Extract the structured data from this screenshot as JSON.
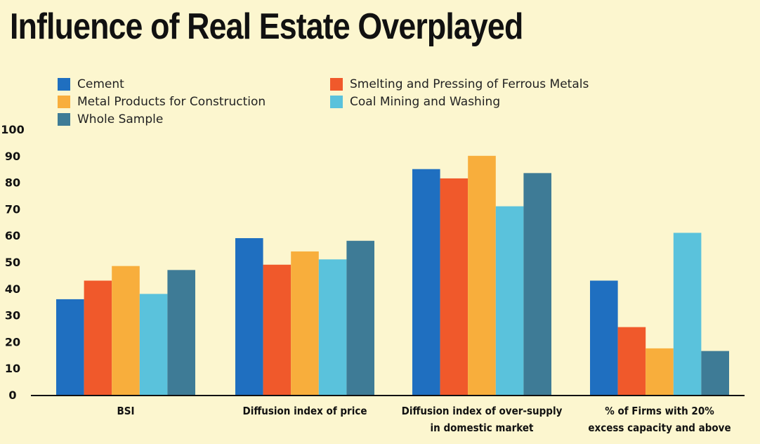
{
  "chart_data": {
    "type": "bar",
    "title": "Influence of Real Estate Overplayed",
    "categories": [
      [
        "BSI"
      ],
      [
        "Diffusion index of price"
      ],
      [
        "Diffusion index of over-supply",
        "in domestic market"
      ],
      [
        "% of Firms with 20%",
        "excess capacity and above"
      ]
    ],
    "series": [
      {
        "name": "Cement",
        "color": "#1f6fc0",
        "values": [
          36,
          59,
          85,
          43
        ]
      },
      {
        "name": "Smelting and Pressing of Ferrous Metals",
        "color": "#f0592b",
        "values": [
          43,
          49,
          81.5,
          25.5
        ]
      },
      {
        "name": "Metal Products for Construction",
        "color": "#f8ae3c",
        "values": [
          48.5,
          54,
          90,
          17.5
        ]
      },
      {
        "name": "Coal Mining and Washing",
        "color": "#5ac2dc",
        "values": [
          38,
          51,
          71,
          61
        ]
      },
      {
        "name": "Whole Sample",
        "color": "#3e7b96",
        "values": [
          47,
          58,
          83.5,
          16.5
        ]
      }
    ],
    "ylim": [
      0,
      100
    ],
    "yticks": [
      0,
      10,
      20,
      30,
      40,
      50,
      60,
      70,
      80,
      90,
      100
    ],
    "legend_position": "top-left",
    "grid": false
  }
}
